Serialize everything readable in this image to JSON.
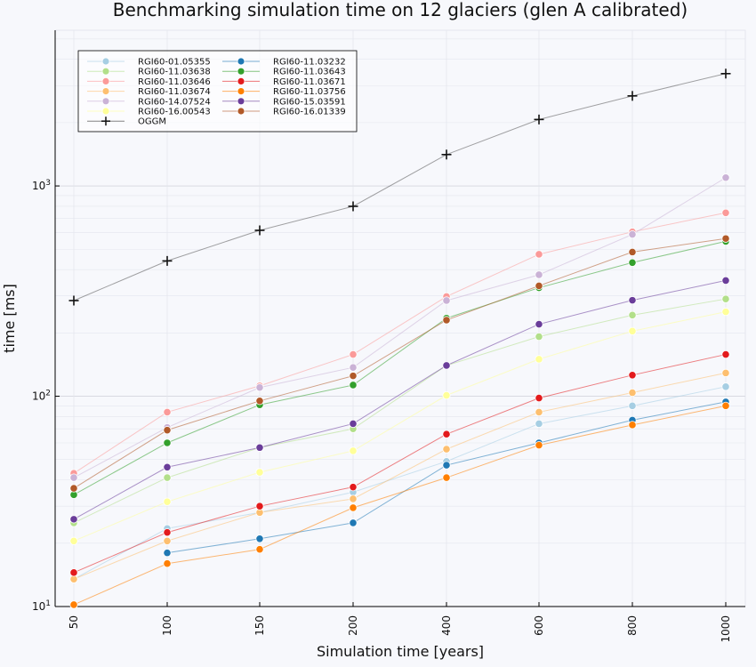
{
  "chart_data": {
    "type": "line",
    "title": "Benchmarking simulation time on 12 glaciers (glen A calibrated)",
    "xlabel": "Simulation time [years]",
    "ylabel": "time [ms]",
    "yscale": "log",
    "ylim": [
      10,
      5500
    ],
    "x_ticks": [
      "50",
      "100",
      "150",
      "200",
      "400",
      "600",
      "800",
      "1000"
    ],
    "y_ticks": [
      "10^1",
      "10^2",
      "10^3"
    ],
    "grid": true,
    "legend_position": "top-left",
    "legend_columns": 2,
    "series": [
      {
        "name": "RGI60-01.05355",
        "color": "#a6cee3",
        "marker": "circle",
        "values": [
          13.5,
          23.5,
          28,
          35,
          49,
          74,
          90,
          111
        ]
      },
      {
        "name": "RGI60-11.03638",
        "color": "#b2df8a",
        "marker": "circle",
        "values": [
          25,
          41,
          57,
          70,
          140,
          192,
          243,
          290
        ]
      },
      {
        "name": "RGI60-11.03646",
        "color": "#fb9a99",
        "marker": "circle",
        "values": [
          43,
          84,
          112,
          158,
          298,
          473,
          605,
          745
        ]
      },
      {
        "name": "RGI60-11.03674",
        "color": "#fdbf6f",
        "marker": "circle",
        "values": [
          13.5,
          20.5,
          28,
          32.5,
          56,
          84,
          104,
          129
        ]
      },
      {
        "name": "RGI60-14.07524",
        "color": "#cab2d6",
        "marker": "circle",
        "values": [
          41,
          71,
          110,
          137,
          285,
          378,
          588,
          1095
        ]
      },
      {
        "name": "RGI60-16.00543",
        "color": "#ffff99",
        "marker": "circle",
        "values": [
          20.5,
          31.5,
          43.5,
          55,
          101,
          150,
          204,
          252
        ]
      },
      {
        "name": "RGI60-11.03232",
        "color": "#1f78b4",
        "marker": "circle",
        "values": [
          null,
          18,
          21,
          25,
          47,
          60,
          77,
          94
        ]
      },
      {
        "name": "RGI60-11.03643",
        "color": "#33a02c",
        "marker": "circle",
        "values": [
          34,
          60,
          91,
          113,
          235,
          328,
          432,
          545
        ]
      },
      {
        "name": "RGI60-11.03671",
        "color": "#e31a1c",
        "marker": "circle",
        "values": [
          14.5,
          22.5,
          30,
          37,
          66,
          98,
          126,
          158
        ]
      },
      {
        "name": "RGI60-11.03756",
        "color": "#ff7f00",
        "marker": "circle",
        "values": [
          10.2,
          16,
          18.7,
          29.5,
          41,
          58.5,
          73,
          90
        ]
      },
      {
        "name": "RGI60-15.03591",
        "color": "#6a3d9a",
        "marker": "circle",
        "values": [
          26,
          46,
          57,
          74,
          140,
          220,
          286,
          355
        ]
      },
      {
        "name": "RGI60-16.01339",
        "color": "#b15928",
        "marker": "circle",
        "values": [
          36.5,
          69,
          95,
          125,
          230,
          335,
          485,
          562
        ]
      },
      {
        "name": "OGGM",
        "color": "#333333",
        "marker": "cross",
        "values": [
          285,
          440,
          615,
          800,
          1410,
          2070,
          2680,
          3420
        ]
      }
    ]
  }
}
